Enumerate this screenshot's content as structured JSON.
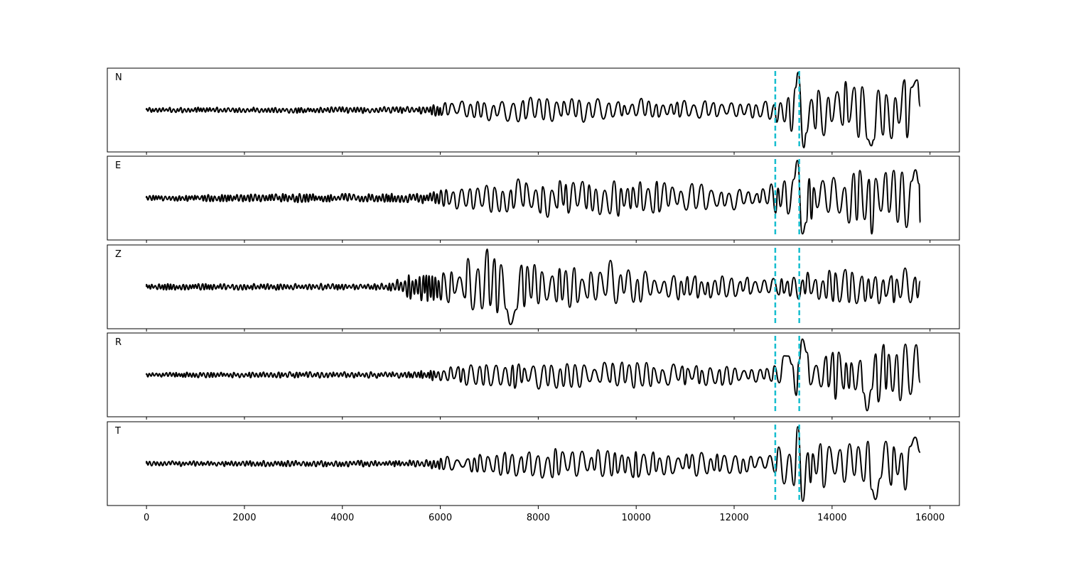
{
  "chart_data": {
    "type": "line",
    "title": "",
    "xlabel": "",
    "ylabel": "",
    "xlim": [
      -800,
      16600
    ],
    "xticks": [
      0,
      2000,
      4000,
      6000,
      8000,
      10000,
      12000,
      14000,
      16000
    ],
    "xtick_labels": [
      "0",
      "2000",
      "4000",
      "6000",
      "8000",
      "10000",
      "12000",
      "14000",
      "16000"
    ],
    "x_range": [
      0,
      15800
    ],
    "grid": false,
    "line_color": "#000000",
    "marker_color": "#17becf",
    "markers": [
      12840,
      13330
    ],
    "panels": [
      {
        "label": "N",
        "seed": 11,
        "end_y": 0.1,
        "envelope": [
          [
            0,
            0.07
          ],
          [
            5500,
            0.09
          ],
          [
            6600,
            0.28
          ],
          [
            8000,
            0.35
          ],
          [
            10500,
            0.3
          ],
          [
            12600,
            0.2
          ],
          [
            13000,
            0.55
          ],
          [
            14000,
            0.75
          ],
          [
            15800,
            0.85
          ]
        ],
        "spikes": [
          [
            13330,
            1.0
          ],
          [
            13380,
            -1.0
          ],
          [
            14800,
            -0.95
          ],
          [
            15700,
            0.8
          ]
        ]
      },
      {
        "label": "E",
        "seed": 23,
        "end_y": -0.65,
        "envelope": [
          [
            0,
            0.07
          ],
          [
            3000,
            0.12
          ],
          [
            5500,
            0.12
          ],
          [
            6600,
            0.35
          ],
          [
            7700,
            0.55
          ],
          [
            10500,
            0.45
          ],
          [
            12600,
            0.3
          ],
          [
            13000,
            0.6
          ],
          [
            14000,
            0.7
          ],
          [
            15800,
            0.85
          ]
        ],
        "spikes": [
          [
            13330,
            1.0
          ],
          [
            13380,
            -0.95
          ],
          [
            14810,
            -0.95
          ],
          [
            15700,
            0.75
          ]
        ]
      },
      {
        "label": "Z",
        "seed": 37,
        "end_y": 0.15,
        "envelope": [
          [
            0,
            0.08
          ],
          [
            4900,
            0.09
          ],
          [
            5300,
            0.32
          ],
          [
            6500,
            0.5
          ],
          [
            6900,
            1.0
          ],
          [
            7500,
            0.65
          ],
          [
            10500,
            0.4
          ],
          [
            12000,
            0.28
          ],
          [
            12600,
            0.3
          ],
          [
            13500,
            0.42
          ],
          [
            15800,
            0.55
          ]
        ],
        "spikes": [
          [
            6590,
            0.75
          ],
          [
            6930,
            1.0
          ],
          [
            7400,
            -1.0
          ],
          [
            9500,
            0.7
          ]
        ]
      },
      {
        "label": "R",
        "seed": 53,
        "end_y": -0.2,
        "envelope": [
          [
            0,
            0.07
          ],
          [
            5500,
            0.09
          ],
          [
            6600,
            0.3
          ],
          [
            8000,
            0.38
          ],
          [
            10500,
            0.36
          ],
          [
            12600,
            0.22
          ],
          [
            13000,
            0.55
          ],
          [
            14000,
            0.75
          ],
          [
            15800,
            0.85
          ]
        ],
        "spikes": [
          [
            13360,
            0.95
          ],
          [
            14730,
            -0.95
          ],
          [
            15700,
            0.8
          ],
          [
            13120,
            0.5
          ]
        ]
      },
      {
        "label": "T",
        "seed": 71,
        "end_y": 0.3,
        "envelope": [
          [
            0,
            0.07
          ],
          [
            5500,
            0.09
          ],
          [
            6600,
            0.28
          ],
          [
            8000,
            0.4
          ],
          [
            10500,
            0.4
          ],
          [
            12600,
            0.22
          ],
          [
            13000,
            0.55
          ],
          [
            14000,
            0.7
          ],
          [
            15800,
            0.8
          ]
        ],
        "spikes": [
          [
            13300,
            0.98
          ],
          [
            13360,
            -1.0
          ],
          [
            14880,
            -0.95
          ],
          [
            15700,
            0.7
          ]
        ]
      }
    ]
  }
}
